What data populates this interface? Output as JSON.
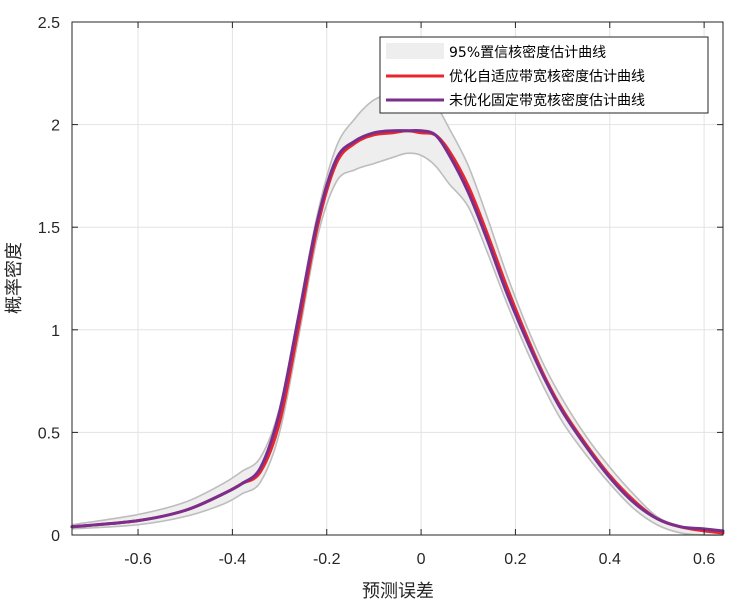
{
  "chart_data": {
    "type": "line",
    "title": "",
    "xlabel": "预测误差",
    "ylabel": "概率密度",
    "xlim": [
      -0.74,
      0.64
    ],
    "ylim": [
      0,
      2.5
    ],
    "xticks": [
      -0.6,
      -0.4,
      -0.2,
      0,
      0.2,
      0.4,
      0.6
    ],
    "yticks": [
      0,
      0.5,
      1,
      1.5,
      2,
      2.5
    ],
    "grid": true,
    "legend_position": "top-right",
    "band": {
      "name": "95%置信核密度估计曲线",
      "color": "#eeeeee",
      "edge_color": "#bdbdbd",
      "x": [
        -0.74,
        -0.6,
        -0.5,
        -0.42,
        -0.38,
        -0.34,
        -0.3,
        -0.26,
        -0.22,
        -0.18,
        -0.14,
        -0.1,
        -0.06,
        -0.03,
        0,
        0.03,
        0.06,
        0.1,
        0.14,
        0.18,
        0.22,
        0.26,
        0.3,
        0.35,
        0.4,
        0.45,
        0.5,
        0.55,
        0.6,
        0.64
      ],
      "upper": [
        0.05,
        0.1,
        0.16,
        0.25,
        0.31,
        0.38,
        0.62,
        1.08,
        1.56,
        1.89,
        2.03,
        2.12,
        2.15,
        2.15,
        2.15,
        2.1,
        1.98,
        1.8,
        1.55,
        1.28,
        1.04,
        0.83,
        0.66,
        0.48,
        0.33,
        0.2,
        0.09,
        0.04,
        0.02,
        0.02
      ],
      "lower": [
        0.03,
        0.05,
        0.09,
        0.15,
        0.2,
        0.26,
        0.5,
        0.96,
        1.45,
        1.72,
        1.78,
        1.81,
        1.84,
        1.86,
        1.85,
        1.8,
        1.71,
        1.6,
        1.38,
        1.14,
        0.92,
        0.72,
        0.55,
        0.39,
        0.25,
        0.13,
        0.05,
        0.01,
        0.0,
        0.0
      ]
    },
    "series": [
      {
        "name": "优化自适应带宽核密度估计曲线",
        "color": "#e8262e",
        "x": [
          -0.74,
          -0.6,
          -0.5,
          -0.42,
          -0.38,
          -0.34,
          -0.3,
          -0.26,
          -0.22,
          -0.18,
          -0.14,
          -0.1,
          -0.06,
          -0.03,
          0,
          0.03,
          0.06,
          0.1,
          0.14,
          0.18,
          0.22,
          0.26,
          0.3,
          0.35,
          0.4,
          0.45,
          0.5,
          0.55,
          0.6,
          0.64
        ],
        "values": [
          0.04,
          0.07,
          0.12,
          0.2,
          0.25,
          0.31,
          0.55,
          1.01,
          1.5,
          1.81,
          1.91,
          1.95,
          1.96,
          1.97,
          1.96,
          1.95,
          1.87,
          1.7,
          1.47,
          1.22,
          0.99,
          0.78,
          0.61,
          0.44,
          0.29,
          0.17,
          0.08,
          0.04,
          0.02,
          0.01
        ]
      },
      {
        "name": "未优化固定带宽核密度估计曲线",
        "color": "#7a2f8c",
        "x": [
          -0.74,
          -0.6,
          -0.5,
          -0.42,
          -0.38,
          -0.34,
          -0.3,
          -0.26,
          -0.22,
          -0.18,
          -0.14,
          -0.1,
          -0.06,
          -0.03,
          0,
          0.03,
          0.06,
          0.1,
          0.14,
          0.18,
          0.22,
          0.26,
          0.3,
          0.35,
          0.4,
          0.45,
          0.5,
          0.55,
          0.6,
          0.64
        ],
        "values": [
          0.04,
          0.07,
          0.12,
          0.2,
          0.25,
          0.33,
          0.6,
          1.06,
          1.53,
          1.83,
          1.92,
          1.96,
          1.97,
          1.97,
          1.97,
          1.95,
          1.85,
          1.67,
          1.44,
          1.19,
          0.97,
          0.77,
          0.6,
          0.43,
          0.28,
          0.16,
          0.08,
          0.04,
          0.03,
          0.02
        ]
      }
    ]
  }
}
